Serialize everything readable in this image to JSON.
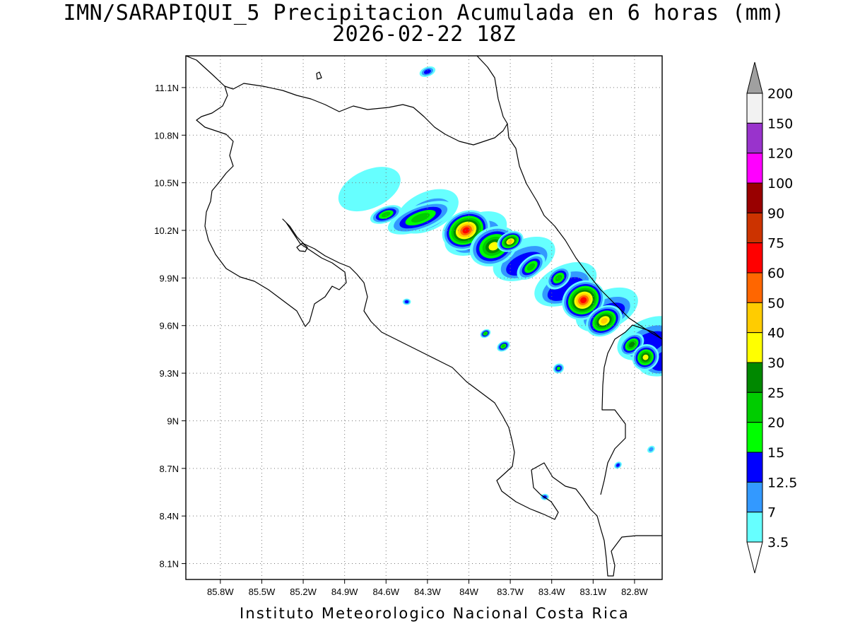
{
  "title": {
    "line1": "IMN/SARAPIQUI_5 Precipitacion Acumulada en 6 horas (mm)",
    "line2": "2026-02-22 18Z"
  },
  "footer": "Instituto Meteorologico Nacional Costa Rica",
  "map": {
    "lon_range": [
      -86.05,
      -82.6
    ],
    "lat_range": [
      8.0,
      11.3
    ],
    "x_ticks": [
      "85.8W",
      "85.5W",
      "85.2W",
      "84.9W",
      "84.6W",
      "84.3W",
      "84W",
      "83.7W",
      "83.4W",
      "83.1W",
      "82.8W"
    ],
    "x_tick_values": [
      -85.8,
      -85.5,
      -85.2,
      -84.9,
      -84.6,
      -84.3,
      -84.0,
      -83.7,
      -83.4,
      -83.1,
      -82.8
    ],
    "y_ticks": [
      "11.1N",
      "10.8N",
      "10.5N",
      "10.2N",
      "9.9N",
      "9.6N",
      "9.3N",
      "9N",
      "8.7N",
      "8.4N",
      "8.1N"
    ],
    "y_tick_values": [
      11.1,
      10.8,
      10.5,
      10.2,
      9.9,
      9.6,
      9.3,
      9.0,
      8.7,
      8.4,
      8.1
    ],
    "grid": "dotted",
    "projection": "lat-lon"
  },
  "colorbar": {
    "levels": [
      "3.5",
      "7",
      "12.5",
      "15",
      "20",
      "25",
      "30",
      "40",
      "50",
      "60",
      "75",
      "90",
      "100",
      "120",
      "150",
      "200"
    ],
    "colors": [
      "#ffffff",
      "#66ffff",
      "#3399ff",
      "#0000ff",
      "#00ff00",
      "#00cc00",
      "#008800",
      "#ffff00",
      "#ffcc00",
      "#ff6600",
      "#ff0000",
      "#cc3300",
      "#990000",
      "#ff00ff",
      "#9933cc",
      "#f2f2f2",
      "#a0a0a0"
    ]
  },
  "precip_cells": [
    {
      "lon": -84.6,
      "lat": 10.3,
      "rx": 0.12,
      "ry": 0.05,
      "rot": -20,
      "level": 5
    },
    {
      "lon": -84.35,
      "lat": 10.28,
      "rx": 0.25,
      "ry": 0.08,
      "rot": -20,
      "level": 5
    },
    {
      "lon": -84.02,
      "lat": 10.2,
      "rx": 0.18,
      "ry": 0.12,
      "rot": -25,
      "level": 10
    },
    {
      "lon": -83.82,
      "lat": 10.1,
      "rx": 0.18,
      "ry": 0.12,
      "rot": -25,
      "level": 7
    },
    {
      "lon": -83.7,
      "lat": 10.13,
      "rx": 0.1,
      "ry": 0.06,
      "rot": -25,
      "level": 8
    },
    {
      "lon": -83.55,
      "lat": 9.97,
      "rx": 0.12,
      "ry": 0.06,
      "rot": -40,
      "level": 5
    },
    {
      "lon": -83.35,
      "lat": 9.9,
      "rx": 0.1,
      "ry": 0.06,
      "rot": -40,
      "level": 5
    },
    {
      "lon": -83.17,
      "lat": 9.76,
      "rx": 0.16,
      "ry": 0.12,
      "rot": -30,
      "level": 10
    },
    {
      "lon": -83.02,
      "lat": 9.63,
      "rx": 0.14,
      "ry": 0.09,
      "rot": -30,
      "level": 8
    },
    {
      "lon": -82.82,
      "lat": 9.48,
      "rx": 0.1,
      "ry": 0.06,
      "rot": -40,
      "level": 6
    },
    {
      "lon": -82.72,
      "lat": 9.4,
      "rx": 0.1,
      "ry": 0.08,
      "rot": -40,
      "level": 7
    },
    {
      "lon": -83.75,
      "lat": 9.47,
      "rx": 0.05,
      "ry": 0.03,
      "rot": -30,
      "level": 5
    },
    {
      "lon": -83.88,
      "lat": 9.55,
      "rx": 0.04,
      "ry": 0.025,
      "rot": -30,
      "level": 5
    },
    {
      "lon": -84.45,
      "lat": 9.75,
      "rx": 0.03,
      "ry": 0.02,
      "rot": 0,
      "level": 3
    },
    {
      "lon": -83.45,
      "lat": 8.52,
      "rx": 0.03,
      "ry": 0.02,
      "rot": 0,
      "level": 3
    },
    {
      "lon": -83.35,
      "lat": 9.33,
      "rx": 0.04,
      "ry": 0.03,
      "rot": -30,
      "level": 4
    },
    {
      "lon": -84.3,
      "lat": 11.2,
      "rx": 0.06,
      "ry": 0.03,
      "rot": -20,
      "level": 3
    },
    {
      "lon": -82.92,
      "lat": 8.72,
      "rx": 0.03,
      "ry": 0.02,
      "rot": -40,
      "level": 3
    },
    {
      "lon": -82.68,
      "lat": 8.82,
      "rx": 0.03,
      "ry": 0.02,
      "rot": -40,
      "level": 2
    }
  ]
}
